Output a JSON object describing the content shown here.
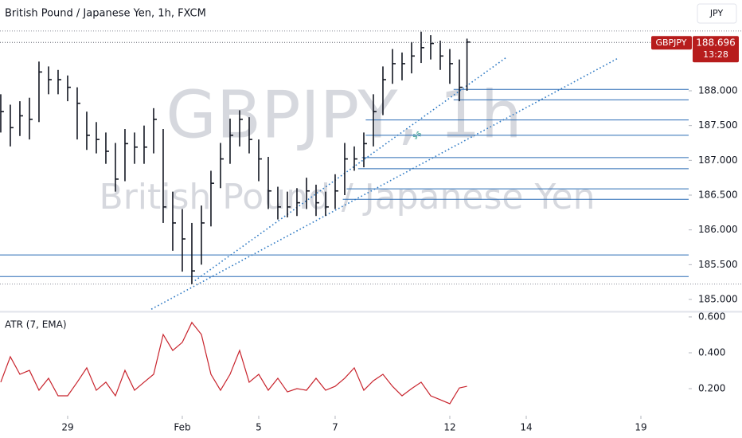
{
  "chart_data": [
    {
      "type": "hlc",
      "title": "British Pound / Japanese Yen, 1h, FXCM",
      "watermark": [
        "GBPJPY, 1h",
        "British Pound / Japanese Yen"
      ],
      "symbol": "GBPJPY",
      "last_value": 188.696,
      "countdown": "13:28",
      "currency": "JPY",
      "annotation": "$$",
      "color": "#131722",
      "x": [
        -1.75,
        -1.5,
        -1.25,
        -1.0,
        -0.75,
        -0.5,
        -0.25,
        0,
        0.25,
        0.5,
        0.75,
        1.0,
        1.25,
        1.5,
        1.75,
        2.0,
        2.25,
        2.5,
        2.75,
        3.0,
        3.25,
        3.5,
        3.75,
        4.0,
        4.25,
        4.5,
        4.75,
        5.0,
        5.25,
        5.5,
        5.75,
        6.0,
        6.25,
        6.5,
        6.75,
        7.0,
        7.25,
        7.5,
        7.75,
        8.0,
        8.25,
        8.5,
        8.75,
        9.0,
        9.25,
        9.5,
        9.75,
        10.0,
        10.25,
        10.45
      ],
      "high": [
        187.95,
        187.8,
        187.85,
        187.9,
        188.42,
        188.35,
        188.3,
        188.22,
        188.05,
        187.7,
        187.55,
        187.4,
        187.25,
        187.45,
        187.4,
        187.5,
        187.75,
        187.45,
        186.55,
        186.3,
        186.1,
        186.35,
        186.85,
        187.25,
        187.6,
        187.72,
        187.62,
        187.3,
        187.05,
        186.62,
        186.55,
        186.6,
        186.75,
        186.65,
        186.55,
        186.8,
        187.25,
        187.2,
        187.4,
        187.95,
        188.35,
        188.6,
        188.55,
        188.7,
        188.85,
        188.8,
        188.72,
        188.6,
        188.45,
        188.75
      ],
      "low": [
        187.4,
        187.2,
        187.35,
        187.3,
        187.55,
        187.95,
        187.95,
        187.85,
        187.3,
        187.15,
        187.1,
        186.95,
        186.55,
        186.7,
        186.95,
        186.95,
        187.1,
        186.1,
        185.7,
        185.4,
        185.22,
        185.5,
        186.05,
        186.6,
        186.95,
        187.2,
        187.1,
        186.7,
        186.3,
        186.15,
        186.18,
        186.2,
        186.3,
        186.2,
        186.2,
        186.3,
        186.5,
        186.85,
        186.9,
        187.2,
        187.65,
        188.1,
        188.15,
        188.25,
        188.4,
        188.45,
        188.3,
        188.1,
        187.85,
        188.0
      ],
      "close": [
        187.7,
        187.47,
        187.64,
        187.59,
        188.27,
        188.16,
        188.16,
        188.05,
        187.82,
        187.36,
        187.3,
        187.13,
        186.73,
        187.24,
        187.19,
        187.19,
        187.59,
        186.33,
        186.1,
        185.87,
        185.41,
        186.1,
        186.67,
        187.02,
        187.36,
        187.59,
        187.3,
        187.02,
        186.56,
        186.33,
        186.33,
        186.39,
        186.56,
        186.39,
        186.33,
        186.56,
        187.02,
        187.02,
        187.24,
        187.7,
        188.16,
        188.39,
        188.39,
        188.5,
        188.62,
        188.68,
        188.5,
        188.39,
        188.05,
        188.7
      ],
      "xlim": [
        -1.77,
        16.25
      ],
      "ylim": [
        184.84,
        188.87
      ],
      "yticks": [
        {
          "value": 185,
          "label": "185.000"
        },
        {
          "value": 185.5,
          "label": "185.500"
        },
        {
          "value": 186,
          "label": "186.000"
        },
        {
          "value": 186.5,
          "label": "186.500"
        },
        {
          "value": 187,
          "label": "187.000"
        },
        {
          "value": 187.5,
          "label": "187.500"
        },
        {
          "value": 188,
          "label": "188.000"
        }
      ],
      "grid": false,
      "hlines_color": "#2a6cb5",
      "hlines": [
        {
          "y": 188.02,
          "x0": 10.1
        },
        {
          "y": 187.87,
          "x0": 10.1
        },
        {
          "y": 187.58,
          "x0": 7.8
        },
        {
          "y": 187.36,
          "x0": 7.8
        },
        {
          "y": 187.04,
          "x0": 7.7
        },
        {
          "y": 186.88,
          "x0": 7.6
        },
        {
          "y": 186.59,
          "x0": 7.3
        },
        {
          "y": 186.44,
          "x0": 7.2
        },
        {
          "y": 185.64,
          "x0": -1.77
        },
        {
          "y": 185.33,
          "x0": -1.77
        }
      ],
      "trendlines_color": "#2f7ac4",
      "trendlines": [
        {
          "x": [
            2.19,
            14.375
          ],
          "y": [
            184.86,
            188.46
          ]
        },
        {
          "x": [
            3.33,
            11.48
          ],
          "y": [
            185.27,
            188.48
          ]
        }
      ],
      "dotted_levels": [
        188.86,
        185.22
      ],
      "last_color": "#b71c1c"
    },
    {
      "type": "line",
      "title": "ATR (7, EMA)",
      "color": "#c8232c",
      "values": [
        0.236,
        0.378,
        0.28,
        0.302,
        0.191,
        0.258,
        0.16,
        0.16,
        0.236,
        0.316,
        0.191,
        0.236,
        0.16,
        0.302,
        0.191,
        0.236,
        0.28,
        0.502,
        0.413,
        0.458,
        0.569,
        0.502,
        0.28,
        0.191,
        0.28,
        0.413,
        0.236,
        0.28,
        0.191,
        0.258,
        0.182,
        0.2,
        0.191,
        0.258,
        0.191,
        0.213,
        0.258,
        0.316,
        0.191,
        0.244,
        0.28,
        0.213,
        0.16,
        0.2,
        0.236,
        0.16,
        0.138,
        0.116,
        0.204,
        0.213
      ],
      "ylim": [
        0.058,
        0.622
      ],
      "yticks": [
        {
          "value": 0.2,
          "label": "0.200"
        },
        {
          "value": 0.4,
          "label": "0.400"
        },
        {
          "value": 0.6,
          "label": "0.600"
        }
      ],
      "xticks": [
        {
          "value": 0,
          "label": "29"
        },
        {
          "value": 3,
          "label": "Feb"
        },
        {
          "value": 5,
          "label": "5"
        },
        {
          "value": 7,
          "label": "7"
        },
        {
          "value": 10,
          "label": "12"
        },
        {
          "value": 12,
          "label": "14"
        },
        {
          "value": 15,
          "label": "19"
        }
      ]
    }
  ]
}
